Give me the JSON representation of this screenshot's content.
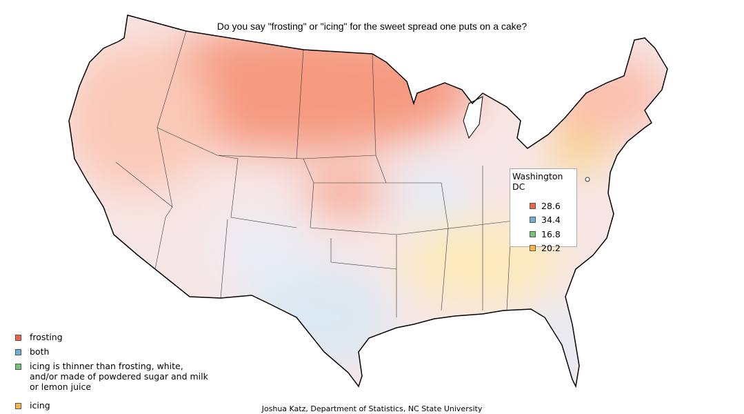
{
  "title": "Do you say \"frosting\" or \"icing\" for the sweet spread one puts on a cake?",
  "legend": [
    {
      "label": "frosting",
      "color": "#ef6548"
    },
    {
      "label": "both",
      "color": "#6baed6"
    },
    {
      "label": "icing is thinner than frosting, white, and/or made of powdered sugar and milk or lemon juice",
      "color": "#74c476"
    },
    {
      "label": "icing",
      "color": "#fdb44b"
    }
  ],
  "tooltip": {
    "title": "Washington DC",
    "values": [
      28.6,
      34.4,
      16.8,
      20.2
    ]
  },
  "credit": "Joshua Katz, Department of Statistics, NC State University"
}
